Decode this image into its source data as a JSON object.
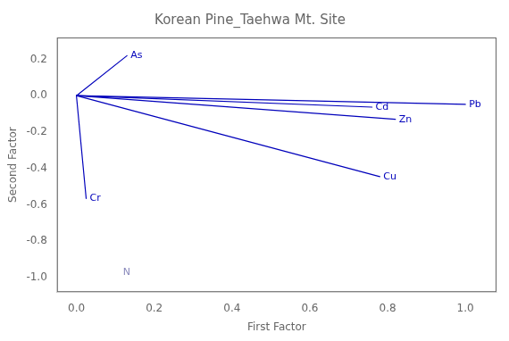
{
  "chart_data": {
    "type": "vector",
    "title": "Korean Pine_Taehwa Mt. Site",
    "xlabel": "First Factor",
    "ylabel": "Second Factor",
    "origin": {
      "x": 0.0,
      "y": 0.0
    },
    "color": "#0000bb",
    "vectors": [
      {
        "name": "As",
        "x": 0.13,
        "y": 0.22
      },
      {
        "name": "Cr",
        "x": 0.025,
        "y": -0.565
      },
      {
        "name": "Pb",
        "x": 1.0,
        "y": -0.048
      },
      {
        "name": "Cd",
        "x": 0.76,
        "y": -0.063
      },
      {
        "name": "Zn",
        "x": 0.82,
        "y": -0.13
      },
      {
        "name": "Cu",
        "x": 0.78,
        "y": -0.445
      }
    ],
    "annotations": [
      {
        "text": "N",
        "x": 0.12,
        "y": -0.97,
        "color": "#8888bb"
      }
    ],
    "xlim": [
      -0.05,
      1.08
    ],
    "ylim": [
      -1.08,
      0.32
    ],
    "xticks": [
      {
        "value": 0,
        "label": "0.0"
      },
      0.2,
      0.4,
      0.6,
      0.8,
      {
        "value": 1,
        "label": "1.0"
      }
    ],
    "yticks": [
      {
        "value": -1,
        "label": "-1.0"
      },
      -0.8,
      -0.6,
      -0.4,
      -0.2,
      {
        "value": 0,
        "label": "0.0"
      },
      0.2
    ],
    "grid": false,
    "legend": false
  }
}
